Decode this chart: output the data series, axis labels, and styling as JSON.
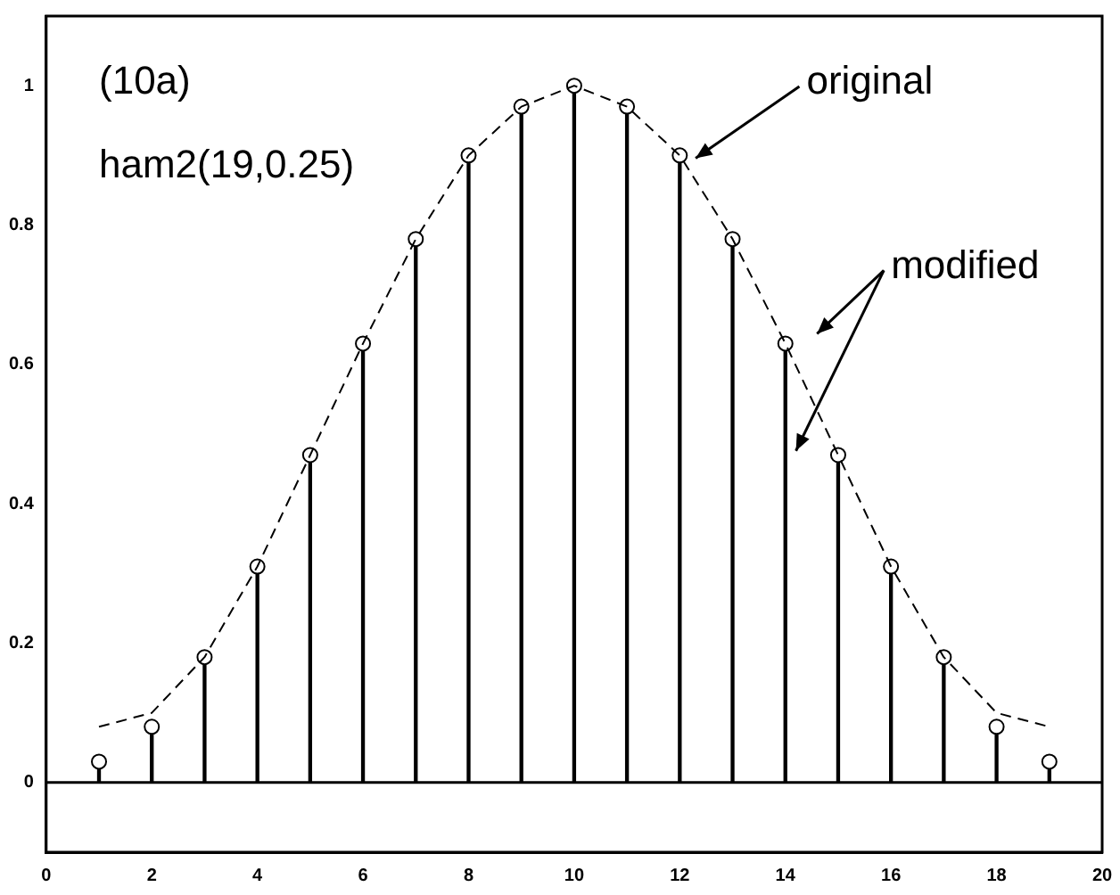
{
  "chart_data": {
    "type": "lollipop",
    "x": [
      1,
      2,
      3,
      4,
      5,
      6,
      7,
      8,
      9,
      10,
      11,
      12,
      13,
      14,
      15,
      16,
      17,
      18,
      19
    ],
    "series": [
      {
        "type": "line",
        "color": "#000000",
        "line_style": "dashed",
        "marker": "none",
        "values": [
          0.08,
          0.1,
          0.18,
          0.31,
          0.47,
          0.63,
          0.78,
          0.9,
          0.97,
          1.0,
          0.97,
          0.9,
          0.78,
          0.63,
          0.47,
          0.31,
          0.18,
          0.1,
          0.08
        ]
      },
      {
        "color": "#000000",
        "marker": "circle",
        "values": [
          0.03,
          0.08,
          0.18,
          0.31,
          0.47,
          0.63,
          0.78,
          0.9,
          0.97,
          1.0,
          0.97,
          0.9,
          0.78,
          0.63,
          0.47,
          0.31,
          0.18,
          0.08,
          0.03
        ]
      }
    ],
    "xlim": [
      0,
      20
    ],
    "xticks": [
      0,
      2,
      4,
      6,
      8,
      10,
      12,
      14,
      16,
      18,
      20
    ],
    "ylim": [
      -0.1,
      1.1
    ],
    "yticks": [
      0,
      0.2,
      0.4,
      0.6,
      0.8,
      1
    ],
    "grid": false,
    "legend": false,
    "ref_lines": [
      {
        "axis": "y",
        "value": 0,
        "color": "#000000"
      }
    ],
    "annotations": [
      "(10a)",
      "ham2(19,0.25)",
      "original",
      "modified"
    ]
  }
}
